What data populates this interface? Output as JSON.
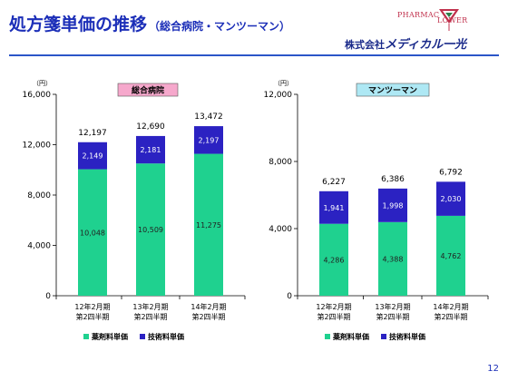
{
  "header": {
    "title": "処方箋単価の推移",
    "subtitle": "（総合病院・マンツーマン）",
    "logo": {
      "pharmac": "PHARMAC",
      "flower": "LOWER",
      "company_prefix": "株式会社",
      "company_name": "メディカル一光"
    }
  },
  "page_number": "12",
  "colors": {
    "drug": "#1fd18f",
    "tech": "#2b22c2",
    "title": "#1c2fb8",
    "hospital_badge": "#f6a8cc",
    "man_badge": "#aee8f4"
  },
  "chart_data": [
    {
      "type": "bar",
      "stacked": true,
      "badge": "総合病院",
      "unit_label": "（円）",
      "categories": [
        [
          "12年2月期",
          "第2四半期"
        ],
        [
          "13年2月期",
          "第2四半期"
        ],
        [
          "14年2月期",
          "第2四半期"
        ]
      ],
      "series": [
        {
          "name": "薬剤料単価",
          "values": [
            10048,
            10509,
            11275
          ],
          "labels": [
            "10,048",
            "10,509",
            "11,275"
          ]
        },
        {
          "name": "技術料単価",
          "values": [
            2149,
            2181,
            2197
          ],
          "labels": [
            "2,149",
            "2,181",
            "2,197"
          ]
        }
      ],
      "totals": [
        "12,197",
        "12,690",
        "13,472"
      ],
      "ylim": [
        0,
        16000
      ],
      "yticks": [
        0,
        4000,
        8000,
        12000,
        16000
      ],
      "ytick_labels": [
        "0",
        "4,000",
        "8,000",
        "12,000",
        "16,000"
      ],
      "legend": [
        "薬剤料単価",
        "技術料単価"
      ],
      "legend_position": "bottom"
    },
    {
      "type": "bar",
      "stacked": true,
      "badge": "マンツーマン",
      "unit_label": "（円）",
      "categories": [
        [
          "12年2月期",
          "第2四半期"
        ],
        [
          "13年2月期",
          "第2四半期"
        ],
        [
          "14年2月期",
          "第2四半期"
        ]
      ],
      "series": [
        {
          "name": "薬剤料単価",
          "values": [
            4286,
            4388,
            4762
          ],
          "labels": [
            "4,286",
            "4,388",
            "4,762"
          ]
        },
        {
          "name": "技術料単価",
          "values": [
            1941,
            1998,
            2030
          ],
          "labels": [
            "1,941",
            "1,998",
            "2,030"
          ]
        }
      ],
      "totals": [
        "6,227",
        "6,386",
        "6,792"
      ],
      "ylim": [
        0,
        12000
      ],
      "yticks": [
        0,
        4000,
        8000,
        12000
      ],
      "ytick_labels": [
        "0",
        "4,000",
        "8,000",
        "12,000"
      ],
      "legend": [
        "薬剤料単価",
        "技術料単価"
      ],
      "legend_position": "bottom"
    }
  ]
}
